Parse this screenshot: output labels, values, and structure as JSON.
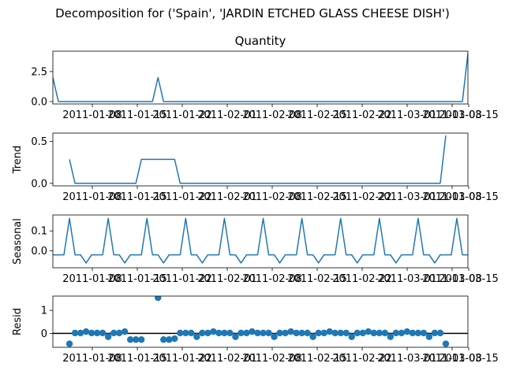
{
  "chart_data": {
    "type": "line",
    "suptitle": "Decomposition for ('Spain', 'JARDIN ETCHED GLASS CHEESE DISH')",
    "x_ticks": [
      "2011-01-08",
      "2011-01-15",
      "2011-01-22",
      "2011-02-01",
      "2011-02-08",
      "2011-02-15",
      "2011-02-22",
      "2011-03-01",
      "2011-03-08",
      "2011-03-15"
    ],
    "series_color": "#1f77b4",
    "panels": [
      {
        "id": "observed",
        "title": "Quantity",
        "ylabel": "",
        "type": "line",
        "ylim": [
          -0.2,
          4.2
        ],
        "yticks": [
          0.0,
          2.5
        ],
        "ytick_labels": [
          "0.0",
          "2.5"
        ],
        "values": [
          2.0,
          0.0,
          0.0,
          0.0,
          0.0,
          0.0,
          0.0,
          0.0,
          0.0,
          0.0,
          0.0,
          0.0,
          0.0,
          0.0,
          0.0,
          0.0,
          0.0,
          0.0,
          0.0,
          2.0,
          0.0,
          0.0,
          0.0,
          0.0,
          0.0,
          0.0,
          0.0,
          0.0,
          0.0,
          0.0,
          0.0,
          0.0,
          0.0,
          0.0,
          0.0,
          0.0,
          0.0,
          0.0,
          0.0,
          0.0,
          0.0,
          0.0,
          0.0,
          0.0,
          0.0,
          0.0,
          0.0,
          0.0,
          0.0,
          0.0,
          0.0,
          0.0,
          0.0,
          0.0,
          0.0,
          0.0,
          0.0,
          0.0,
          0.0,
          0.0,
          0.0,
          0.0,
          0.0,
          0.0,
          0.0,
          0.0,
          0.0,
          0.0,
          0.0,
          0.0,
          0.0,
          0.0,
          0.0,
          0.0,
          0.0,
          4.0
        ]
      },
      {
        "id": "trend",
        "title": "",
        "ylabel": "Trend",
        "type": "line",
        "ylim": [
          -0.03,
          0.6
        ],
        "yticks": [
          0.0,
          0.5
        ],
        "ytick_labels": [
          "0.0",
          "0.5"
        ],
        "values": [
          null,
          null,
          null,
          0.286,
          0.0,
          0.0,
          0.0,
          0.0,
          0.0,
          0.0,
          0.0,
          0.0,
          0.0,
          0.0,
          0.0,
          0.0,
          0.286,
          0.286,
          0.286,
          0.286,
          0.286,
          0.286,
          0.286,
          0.0,
          0.0,
          0.0,
          0.0,
          0.0,
          0.0,
          0.0,
          0.0,
          0.0,
          0.0,
          0.0,
          0.0,
          0.0,
          0.0,
          0.0,
          0.0,
          0.0,
          0.0,
          0.0,
          0.0,
          0.0,
          0.0,
          0.0,
          0.0,
          0.0,
          0.0,
          0.0,
          0.0,
          0.0,
          0.0,
          0.0,
          0.0,
          0.0,
          0.0,
          0.0,
          0.0,
          0.0,
          0.0,
          0.0,
          0.0,
          0.0,
          0.0,
          0.0,
          0.0,
          0.0,
          0.0,
          0.0,
          0.0,
          0.571,
          null,
          null,
          null,
          null
        ]
      },
      {
        "id": "seasonal",
        "title": "",
        "ylabel": "Seasonal",
        "type": "line",
        "ylim": [
          -0.085,
          0.18
        ],
        "yticks": [
          0.0,
          0.1
        ],
        "ytick_labels": [
          "0.0",
          "0.1"
        ],
        "pattern": [
          -0.02,
          -0.02,
          -0.02,
          0.163,
          -0.02,
          -0.02,
          -0.061
        ],
        "length": 76
      },
      {
        "id": "resid",
        "title": "",
        "ylabel": "Resid",
        "type": "scatter",
        "ylim": [
          -0.6,
          1.62
        ],
        "yticks": [
          0.0,
          1.0
        ],
        "ytick_labels": [
          "0",
          "1"
        ],
        "zero_line": true,
        "values": [
          null,
          null,
          null,
          -0.449,
          0.02,
          0.02,
          0.081,
          0.02,
          0.02,
          0.02,
          -0.143,
          0.02,
          0.02,
          0.081,
          -0.266,
          -0.266,
          -0.266,
          null,
          null,
          1.551,
          -0.266,
          -0.266,
          -0.225,
          0.02,
          0.02,
          0.02,
          -0.143,
          0.02,
          0.02,
          0.081,
          0.02,
          0.02,
          0.02,
          -0.143,
          0.02,
          0.02,
          0.081,
          0.02,
          0.02,
          0.02,
          -0.143,
          0.02,
          0.02,
          0.081,
          0.02,
          0.02,
          0.02,
          -0.143,
          0.02,
          0.02,
          0.081,
          0.02,
          0.02,
          0.02,
          -0.143,
          0.02,
          0.02,
          0.081,
          0.02,
          0.02,
          0.02,
          -0.143,
          0.02,
          0.02,
          0.081,
          0.02,
          0.02,
          0.02,
          -0.143,
          0.02,
          0.02,
          -0.449,
          null,
          null,
          null,
          null
        ]
      }
    ]
  }
}
